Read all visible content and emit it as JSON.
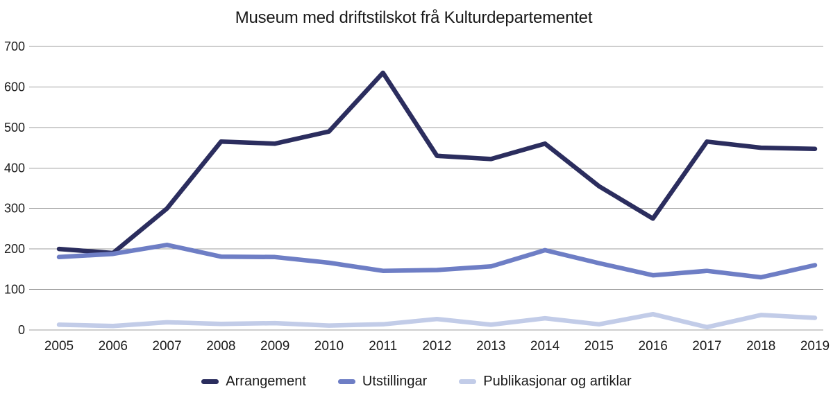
{
  "chart_data": {
    "type": "line",
    "title": "Museum med driftstilskot frå Kulturdepartementet",
    "categories": [
      "2005",
      "2006",
      "2007",
      "2008",
      "2009",
      "2010",
      "2011",
      "2012",
      "2013",
      "2014",
      "2015",
      "2016",
      "2017",
      "2018",
      "2019"
    ],
    "series": [
      {
        "name": "Arrangement",
        "color": "#2B2D5E",
        "values": [
          200,
          190,
          300,
          465,
          460,
          490,
          635,
          430,
          422,
          460,
          355,
          275,
          465,
          450,
          447
        ]
      },
      {
        "name": "Utstillingar",
        "color": "#6E7EC5",
        "values": [
          180,
          188,
          210,
          181,
          180,
          166,
          146,
          148,
          157,
          197,
          165,
          135,
          146,
          130,
          160
        ]
      },
      {
        "name": "Publikasjonar og artiklar",
        "color": "#C2CCE8",
        "values": [
          13,
          10,
          19,
          15,
          17,
          11,
          14,
          27,
          13,
          29,
          14,
          39,
          7,
          37,
          30
        ]
      }
    ],
    "xlabel": "",
    "ylabel": "",
    "ylim": [
      0,
      700
    ],
    "yticks": [
      0,
      100,
      200,
      300,
      400,
      500,
      600,
      700
    ],
    "grid": true,
    "legend_position": "bottom",
    "styles": {
      "grid_color": "#9E9E9E",
      "text_color": "#1A1A1A",
      "background": "#FFFFFF"
    }
  }
}
